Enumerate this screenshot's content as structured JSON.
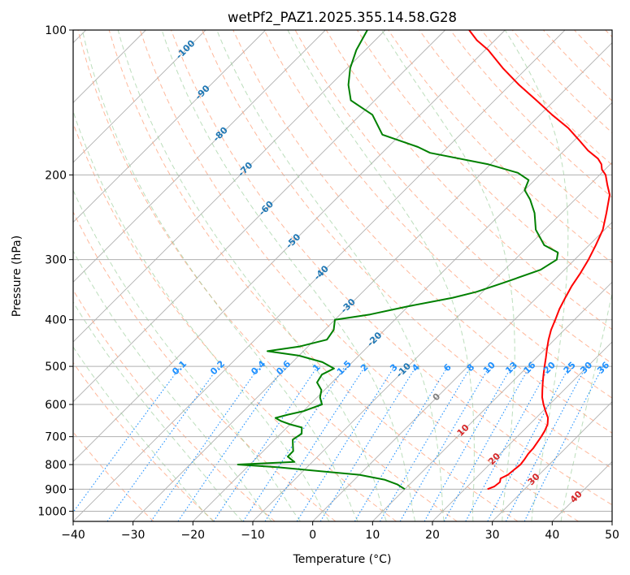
{
  "chart_data": {
    "type": "line",
    "title": "wetPf2_PAZ1.2025.355.14.58.G28",
    "xlabel": "Temperature (°C)",
    "ylabel": "Pressure (hPa)",
    "xlim": [
      -40,
      50
    ],
    "ylim": [
      1050,
      100
    ],
    "y_scale": "log",
    "grid": true,
    "x_ticks": [
      "−40",
      "−30",
      "−20",
      "−10",
      "0",
      "10",
      "20",
      "30",
      "40",
      "50"
    ],
    "y_ticks": [
      "100",
      "200",
      "300",
      "400",
      "500",
      "600",
      "700",
      "800",
      "900",
      "1000"
    ],
    "colors": {
      "temperature": "#ff0000",
      "dewpoint": "#008000",
      "isotherm": "#b0b0b0",
      "dry_adiabat": "#ffa07a",
      "moist_adiabat": "#90c890",
      "mixing_ratio": "#1e90ff",
      "isotherm_label": "#1f77b4",
      "mixing_ratio_label": "#1e90ff",
      "moist_adiabat_label": "#d62728",
      "zero_label": "#808080"
    },
    "isotherm_labels": [
      "-100",
      "-90",
      "-80",
      "-70",
      "-60",
      "-50",
      "-40",
      "-30",
      "-20",
      "-10",
      "0",
      "10",
      "20",
      "30",
      "40"
    ],
    "mixing_ratio_labels": [
      "0.1",
      "0.2",
      "0.4",
      "0.6",
      "1",
      "1.5",
      "2",
      "3",
      "4",
      "6",
      "8",
      "10",
      "13",
      "16",
      "20",
      "25",
      "30",
      "36"
    ],
    "series": [
      {
        "name": "",
        "role": "temperature",
        "points": [
          [
            23.8,
            900
          ],
          [
            24.5,
            888
          ],
          [
            24.7,
            870
          ],
          [
            24.2,
            855
          ],
          [
            24.8,
            840
          ],
          [
            25.0,
            820
          ],
          [
            25.2,
            800
          ],
          [
            25.0,
            780
          ],
          [
            24.7,
            760
          ],
          [
            24.6,
            740
          ],
          [
            24.3,
            720
          ],
          [
            24.0,
            700
          ],
          [
            23.6,
            680
          ],
          [
            23.0,
            660
          ],
          [
            22.0,
            640
          ],
          [
            20.5,
            620
          ],
          [
            19.0,
            600
          ],
          [
            17.6,
            580
          ],
          [
            16.4,
            560
          ],
          [
            15.2,
            540
          ],
          [
            14.0,
            520
          ],
          [
            12.8,
            500
          ],
          [
            11.6,
            480
          ],
          [
            10.3,
            460
          ],
          [
            9.0,
            440
          ],
          [
            7.8,
            420
          ],
          [
            6.8,
            400
          ],
          [
            5.7,
            380
          ],
          [
            4.8,
            360
          ],
          [
            3.9,
            340
          ],
          [
            3.2,
            320
          ],
          [
            2.3,
            300
          ],
          [
            1.1,
            280
          ],
          [
            -0.3,
            260
          ],
          [
            -2.5,
            240
          ],
          [
            -5.0,
            220
          ],
          [
            -7.0,
            210
          ],
          [
            -9.0,
            200
          ],
          [
            -10.5,
            195
          ],
          [
            -11.5,
            190
          ],
          [
            -13.0,
            185
          ],
          [
            -16.0,
            178
          ],
          [
            -19.0,
            170
          ],
          [
            -23.0,
            160
          ],
          [
            -28.0,
            150
          ],
          [
            -33.0,
            140
          ],
          [
            -38.5,
            130
          ],
          [
            -44.0,
            120
          ],
          [
            -49.5,
            110
          ],
          [
            -53.0,
            105
          ],
          [
            -56.0,
            100
          ]
        ]
      },
      {
        "name": "",
        "role": "dewpoint",
        "points": [
          [
            10.0,
            900
          ],
          [
            8.0,
            880
          ],
          [
            5.0,
            860
          ],
          [
            0.0,
            840
          ],
          [
            -10.0,
            820
          ],
          [
            -15.0,
            810
          ],
          [
            -22.0,
            800
          ],
          [
            -13.0,
            790
          ],
          [
            -15.0,
            770
          ],
          [
            -15.0,
            750
          ],
          [
            -16.0,
            730
          ],
          [
            -17.0,
            710
          ],
          [
            -16.5,
            690
          ],
          [
            -17.5,
            670
          ],
          [
            -20.0,
            660
          ],
          [
            -22.0,
            650
          ],
          [
            -23.5,
            640
          ],
          [
            -22.0,
            630
          ],
          [
            -20.0,
            620
          ],
          [
            -18.0,
            600
          ],
          [
            -19.5,
            580
          ],
          [
            -20.5,
            560
          ],
          [
            -22.5,
            540
          ],
          [
            -23.0,
            520
          ],
          [
            -22.0,
            505
          ],
          [
            -25.0,
            490
          ],
          [
            -30.0,
            475
          ],
          [
            -36.0,
            465
          ],
          [
            -31.5,
            455
          ],
          [
            -28.0,
            440
          ],
          [
            -28.5,
            420
          ],
          [
            -30.0,
            400
          ],
          [
            -25.0,
            390
          ],
          [
            -20.0,
            375
          ],
          [
            -14.0,
            360
          ],
          [
            -11.0,
            350
          ],
          [
            -8.0,
            335
          ],
          [
            -4.0,
            315
          ],
          [
            -3.0,
            300
          ],
          [
            -4.0,
            290
          ],
          [
            -7.5,
            280
          ],
          [
            -11.5,
            260
          ],
          [
            -14.5,
            240
          ],
          [
            -17.5,
            225
          ],
          [
            -20.0,
            215
          ],
          [
            -21.0,
            205
          ],
          [
            -24.0,
            198
          ],
          [
            -30.5,
            190
          ],
          [
            -42.0,
            180
          ],
          [
            -45.0,
            175
          ],
          [
            -53.0,
            165
          ],
          [
            -58.0,
            150
          ],
          [
            -64.0,
            140
          ],
          [
            -67.0,
            130
          ],
          [
            -69.5,
            120
          ],
          [
            -71.5,
            110
          ],
          [
            -73.0,
            100
          ]
        ]
      }
    ]
  }
}
